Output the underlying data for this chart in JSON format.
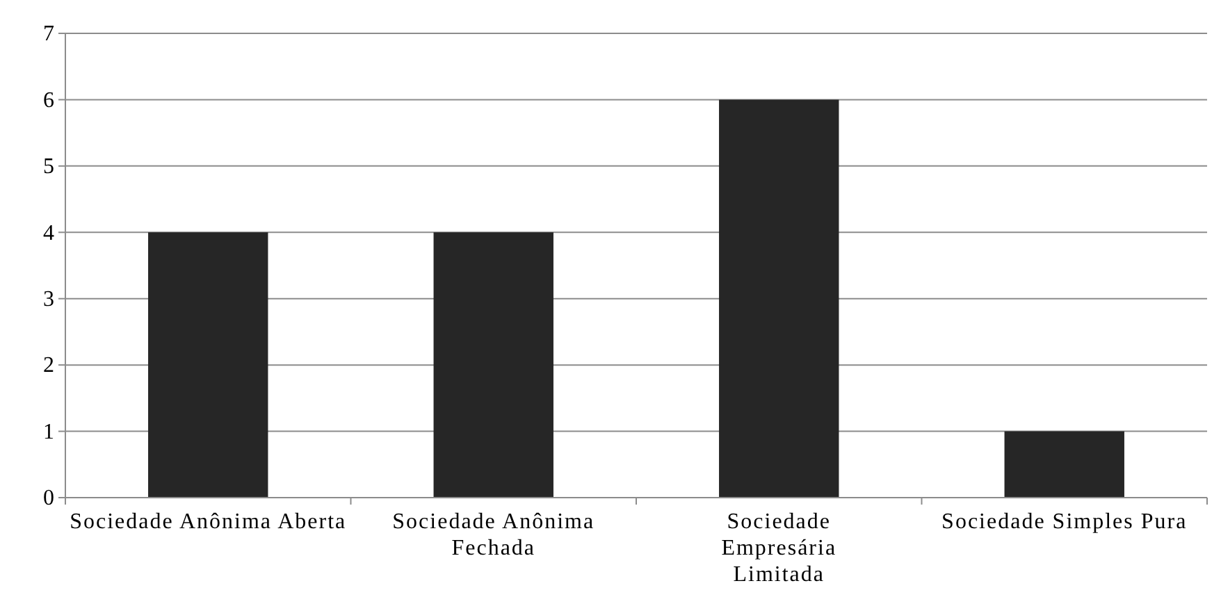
{
  "chart_data": {
    "type": "bar",
    "categories": [
      "Sociedade Anônima Aberta",
      "Sociedade Anônima Fechada",
      "Sociedade Empresária Limitada",
      "Sociedade Simples Pura"
    ],
    "values": [
      4,
      4,
      6,
      1
    ],
    "color": "#262626",
    "ylim": [
      0,
      7
    ],
    "yticks": [
      0,
      1,
      2,
      3,
      4,
      5,
      6,
      7
    ],
    "grid": "y"
  }
}
